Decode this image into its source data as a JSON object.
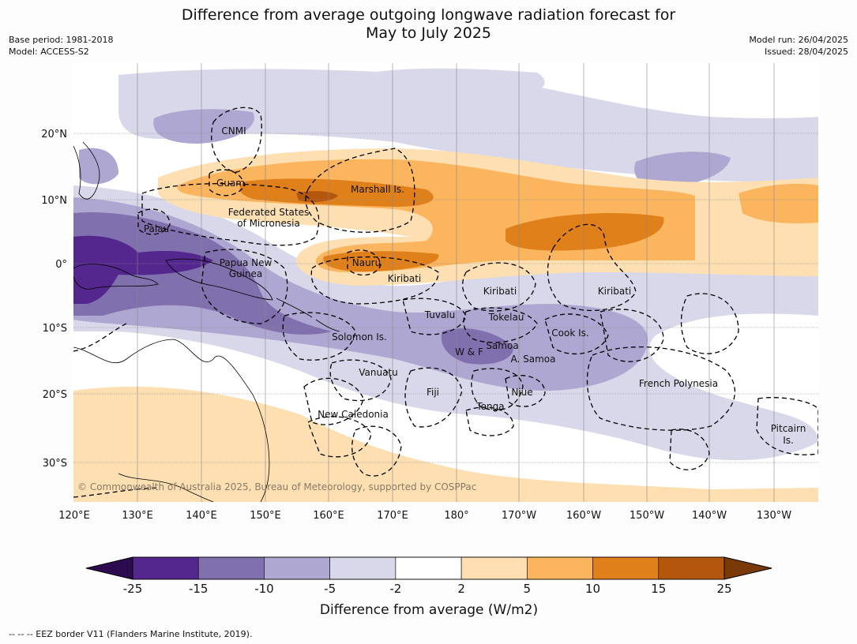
{
  "header": {
    "title_line1": "Difference from average outgoing longwave radiation forecast for",
    "title_line2": "May to July 2025",
    "base_period": "Base period: 1981-2018",
    "model": "Model: ACCESS-S2",
    "model_run": "Model run: 26/04/2025",
    "issued": "Issued: 28/04/2025"
  },
  "map": {
    "lon_ticks": [
      "120°E",
      "130°E",
      "140°E",
      "150°E",
      "160°E",
      "170°E",
      "180°",
      "170°W",
      "160°W",
      "150°W",
      "140°W",
      "130°W"
    ],
    "lat_ticks": [
      "20°N",
      "10°N",
      "0°",
      "10°S",
      "20°S",
      "30°S"
    ],
    "copyright": "© Commonwealth of Australia 2025, Bureau of Meteorology, supported by COSPPac",
    "labels": {
      "cnmi": "CNMI",
      "guam": "Guam",
      "marshall": "Marshall Is.",
      "fsm1": "Federated States",
      "fsm2": "of Micronesia",
      "palau": "Palau",
      "png1": "Papua New",
      "png2": "Guinea",
      "nauru": "Nauru",
      "kiribati1": "Kiribati",
      "kiribati2": "Kiribati",
      "kiribati3": "Kiribati",
      "tuvalu": "Tuvalu",
      "tokelau": "Tokelau",
      "cook": "Cook Is.",
      "solomon": "Solomon Is.",
      "wf": "W & F",
      "samoa": "Samoa",
      "asamoa": "A. Samoa",
      "vanuatu": "Vanuatu",
      "fiji": "Fiji",
      "niue": "Niue",
      "tonga": "Tonga",
      "frpoly": "French Polynesia",
      "newcal": "New Caledonia",
      "pitcairn1": "Pitcairn",
      "pitcairn2": "Is."
    }
  },
  "colorbar": {
    "ticks": [
      "-25",
      "-15",
      "-10",
      "-5",
      "-2",
      "2",
      "5",
      "10",
      "15",
      "25"
    ],
    "colors": [
      "#2d0b4f",
      "#54278f",
      "#8070ad",
      "#ada7d1",
      "#d8d8ea",
      "#ffffff",
      "#fddfb2",
      "#fbb55f",
      "#e0801a",
      "#b4560c",
      "#7a3a08"
    ],
    "label": "Difference from average (W/m2)"
  },
  "footnote": "--  --  -- EEZ border V11 (Flanders Marine Institute, 2019)."
}
